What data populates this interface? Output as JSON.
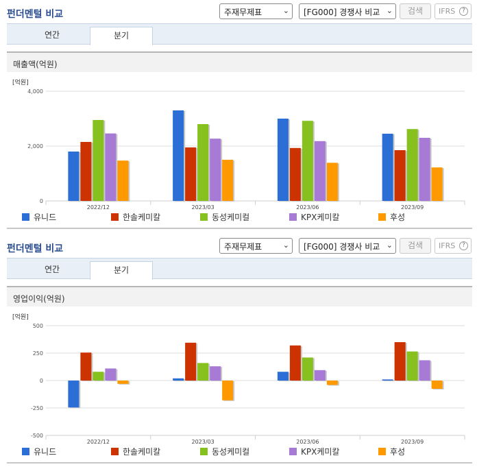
{
  "panels": [
    {
      "title": "펀더멘털 비교",
      "select_type": "주재무제표",
      "select_compare": "[FG000] 경쟁사 비교",
      "search_label": "검색",
      "ifrs_label": "IFRS",
      "help_glyph": "?",
      "tabs": [
        "연간",
        "분기"
      ],
      "active_tab": "분기",
      "subheader": "매출액(억원)"
    },
    {
      "title": "펀더멘털 비교",
      "select_type": "주재무제표",
      "select_compare": "[FG000] 경쟁사 비교",
      "search_label": "검색",
      "ifrs_label": "IFRS",
      "help_glyph": "?",
      "tabs": [
        "연간",
        "분기"
      ],
      "active_tab": "분기",
      "subheader": "영업이익(억원)"
    }
  ],
  "chart_data": [
    {
      "type": "bar",
      "unit_label": "[억원]",
      "categories": [
        "2022/12",
        "2023/03",
        "2023/06",
        "2023/09"
      ],
      "ylim": [
        0,
        4000
      ],
      "yticks": [
        0,
        2000,
        4000
      ],
      "ytick_labels": [
        "0",
        "2,000",
        "4,000"
      ],
      "grid": true,
      "legend": "bottom",
      "series": [
        {
          "name": "유니드",
          "color": "#2b6fd6",
          "values": [
            1800,
            3300,
            3000,
            2450
          ]
        },
        {
          "name": "한솔케미칼",
          "color": "#cc3300",
          "values": [
            2150,
            1950,
            1930,
            1850
          ]
        },
        {
          "name": "동성케미컬",
          "color": "#86c11f",
          "values": [
            2950,
            2800,
            2920,
            2620
          ]
        },
        {
          "name": "KPX케미칼",
          "color": "#a77ad6",
          "values": [
            2460,
            2270,
            2180,
            2300
          ]
        },
        {
          "name": "후성",
          "color": "#ff9900",
          "values": [
            1470,
            1500,
            1390,
            1220
          ]
        }
      ]
    },
    {
      "type": "bar",
      "unit_label": "[억원]",
      "categories": [
        "2022/12",
        "2023/03",
        "2023/06",
        "2023/09"
      ],
      "ylim": [
        -500,
        500
      ],
      "yticks": [
        -500,
        -250,
        0,
        250,
        500
      ],
      "ytick_labels": [
        "-500",
        "-250",
        "0",
        "250",
        "500"
      ],
      "grid": true,
      "legend": "bottom",
      "series": [
        {
          "name": "유니드",
          "color": "#2b6fd6",
          "values": [
            -245,
            20,
            80,
            10
          ]
        },
        {
          "name": "한솔케미칼",
          "color": "#cc3300",
          "values": [
            255,
            345,
            320,
            350
          ]
        },
        {
          "name": "동성케미컬",
          "color": "#86c11f",
          "values": [
            80,
            160,
            210,
            265
          ]
        },
        {
          "name": "KPX케미칼",
          "color": "#a77ad6",
          "values": [
            110,
            130,
            95,
            185
          ]
        },
        {
          "name": "후성",
          "color": "#ff9900",
          "values": [
            -30,
            -180,
            -40,
            -75
          ]
        }
      ]
    }
  ]
}
